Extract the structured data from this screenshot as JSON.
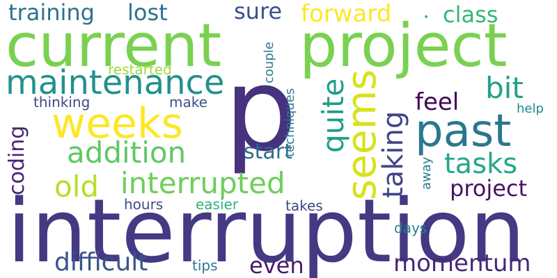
{
  "words": [
    {
      "id": "interruption",
      "text": "interruption",
      "color": "#443983"
    },
    {
      "id": "current",
      "text": "current",
      "color": "#7ad151"
    },
    {
      "id": "project_big",
      "text": "project",
      "color": "#7ad151"
    },
    {
      "id": "p",
      "text": "p",
      "color": "#46327e"
    },
    {
      "id": "past",
      "text": "past",
      "color": "#2a788e"
    },
    {
      "id": "weeks",
      "text": "weeks",
      "color": "#fde725"
    },
    {
      "id": "seems",
      "text": "seems",
      "color": "#d8e219"
    },
    {
      "id": "maintenance",
      "text": "maintenance",
      "color": "#21918c"
    },
    {
      "id": "quite",
      "text": "quite",
      "color": "#1f9e89"
    },
    {
      "id": "taking",
      "text": "taking",
      "color": "#414487"
    },
    {
      "id": "addition",
      "text": "addition",
      "color": "#5ec962"
    },
    {
      "id": "interrupted",
      "text": "interrupted",
      "color": "#6ece58"
    },
    {
      "id": "old",
      "text": "old",
      "color": "#b5de2b"
    },
    {
      "id": "bit",
      "text": "bit",
      "color": "#1fa088"
    },
    {
      "id": "tasks",
      "text": "tasks",
      "color": "#22a884"
    },
    {
      "id": "coding",
      "text": "coding",
      "color": "#482475"
    },
    {
      "id": "training",
      "text": "training",
      "color": "#2c728e"
    },
    {
      "id": "lost",
      "text": "lost",
      "color": "#2c728e"
    },
    {
      "id": "sure",
      "text": "sure",
      "color": "#3b528b"
    },
    {
      "id": "forward",
      "text": "forward",
      "color": "#fde725"
    },
    {
      "id": "class",
      "text": "class",
      "color": "#35b779"
    },
    {
      "id": "difficult",
      "text": "difficult",
      "color": "#3b528b"
    },
    {
      "id": "momentum",
      "text": "momentum",
      "color": "#482878"
    },
    {
      "id": "even",
      "text": "even",
      "color": "#481a6c"
    },
    {
      "id": "feel",
      "text": "feel",
      "color": "#440154"
    },
    {
      "id": "project_sm",
      "text": "project",
      "color": "#471164"
    },
    {
      "id": "start",
      "text": "start",
      "color": "#31688e"
    },
    {
      "id": "restarted",
      "text": "restarted",
      "color": "#a0da39"
    },
    {
      "id": "thinking",
      "text": "thinking",
      "color": "#3e4989"
    },
    {
      "id": "make",
      "text": "make",
      "color": "#3b528b"
    },
    {
      "id": "couple",
      "text": "couple",
      "color": "#287c8e"
    },
    {
      "id": "techniques",
      "text": "techniques",
      "color": "#277f8e"
    },
    {
      "id": "help",
      "text": "help",
      "color": "#24868e"
    },
    {
      "id": "away",
      "text": "away",
      "color": "#2a788e"
    },
    {
      "id": "hours",
      "text": "hours",
      "color": "#3e4a89"
    },
    {
      "id": "easier",
      "text": "easier",
      "color": "#2db27d"
    },
    {
      "id": "takes",
      "text": "takes",
      "color": "#3f4788"
    },
    {
      "id": "days",
      "text": "days",
      "color": "#26828e"
    },
    {
      "id": "tips",
      "text": "tips",
      "color": "#2a788e"
    }
  ]
}
